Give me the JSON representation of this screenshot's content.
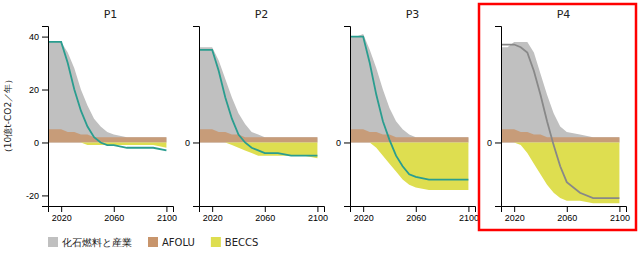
{
  "chart_data": [
    {
      "type": "area",
      "title": "P1",
      "ylabel": "（10億t-CO2／年）",
      "legend": "bottom",
      "x": [
        2010,
        2015,
        2020,
        2025,
        2030,
        2035,
        2040,
        2045,
        2050,
        2055,
        2060,
        2070,
        2080,
        2090,
        2100
      ],
      "xlim": [
        2010,
        2105
      ],
      "xticks": [
        2020,
        2060,
        2100
      ],
      "ylim": [
        -24,
        44
      ],
      "yticks": [
        -20,
        0,
        20,
        40
      ],
      "series": [
        {
          "name": "化石燃料と産業",
          "type": "area",
          "color": "#c0c0c0",
          "values": [
            38,
            38,
            38,
            34,
            28,
            20,
            14,
            9,
            6,
            4,
            3,
            2,
            2,
            2,
            2
          ],
          "lower": [
            0,
            0,
            0,
            0,
            0,
            0,
            0,
            0,
            0,
            0,
            0,
            0,
            0,
            0,
            0
          ]
        },
        {
          "name": "AFOLU",
          "type": "area",
          "color": "#c8956c",
          "values": [
            5,
            5,
            5,
            4,
            4,
            3,
            3,
            2,
            2,
            2,
            2,
            2,
            2,
            2,
            2
          ],
          "lower": [
            0,
            0,
            0,
            0,
            0,
            0,
            0,
            0,
            0,
            0,
            0,
            0,
            0,
            0,
            0
          ]
        },
        {
          "name": "BECCS",
          "type": "area",
          "color": "#dede50",
          "values": [
            0,
            0,
            0,
            0,
            0,
            0,
            0,
            0,
            0,
            0,
            0,
            0,
            0,
            0,
            0
          ],
          "lower": [
            0,
            0,
            0,
            0,
            0,
            0,
            -1,
            -1,
            -1,
            -1,
            -1,
            -1,
            -1,
            -1,
            -2
          ]
        },
        {
          "type": "line",
          "color": "#2a9d8f",
          "values": [
            38,
            38,
            38,
            30,
            20,
            12,
            6,
            2,
            0,
            -1,
            -1,
            -2,
            -2,
            -2,
            -3
          ]
        }
      ]
    },
    {
      "type": "area",
      "title": "P2",
      "x": [
        2010,
        2015,
        2020,
        2025,
        2030,
        2035,
        2040,
        2045,
        2050,
        2055,
        2060,
        2070,
        2080,
        2090,
        2100
      ],
      "xlim": [
        2010,
        2105
      ],
      "xticks": [
        2020,
        2060,
        2100
      ],
      "ylim": [
        -24,
        44
      ],
      "yticks": [
        0
      ],
      "series": [
        {
          "type": "area",
          "color": "#c0c0c0",
          "values": [
            36,
            36,
            36,
            31,
            24,
            17,
            11,
            7,
            4,
            3,
            2,
            2,
            2,
            2,
            2
          ],
          "lower": [
            0,
            0,
            0,
            0,
            0,
            0,
            0,
            0,
            0,
            0,
            0,
            0,
            0,
            0,
            0
          ]
        },
        {
          "type": "area",
          "color": "#c8956c",
          "values": [
            5,
            5,
            5,
            4,
            4,
            3,
            3,
            2,
            2,
            2,
            2,
            2,
            2,
            2,
            2
          ],
          "lower": [
            0,
            0,
            0,
            0,
            0,
            0,
            0,
            0,
            0,
            0,
            0,
            0,
            0,
            0,
            0
          ]
        },
        {
          "type": "area",
          "color": "#dede50",
          "values": [
            0,
            0,
            0,
            0,
            0,
            0,
            0,
            0,
            0,
            0,
            0,
            0,
            0,
            0,
            0
          ],
          "lower": [
            0,
            0,
            0,
            0,
            0,
            -1,
            -2,
            -3,
            -4,
            -5,
            -5,
            -5,
            -5,
            -5,
            -6
          ]
        },
        {
          "type": "line",
          "color": "#2a9d8f",
          "values": [
            35,
            35,
            35,
            27,
            17,
            9,
            3,
            0,
            -2,
            -3,
            -4,
            -4,
            -5,
            -5,
            -5
          ]
        }
      ]
    },
    {
      "type": "area",
      "title": "P3",
      "x": [
        2010,
        2015,
        2020,
        2025,
        2030,
        2035,
        2040,
        2045,
        2050,
        2055,
        2060,
        2070,
        2080,
        2090,
        2100
      ],
      "xlim": [
        2010,
        2105
      ],
      "xticks": [
        2020,
        2060,
        2100
      ],
      "ylim": [
        -24,
        44
      ],
      "yticks": [
        0
      ],
      "series": [
        {
          "type": "area",
          "color": "#c0c0c0",
          "values": [
            40,
            40,
            41,
            35,
            28,
            20,
            13,
            8,
            5,
            3,
            2,
            2,
            2,
            2,
            2
          ],
          "lower": [
            0,
            0,
            0,
            0,
            0,
            0,
            0,
            0,
            0,
            0,
            0,
            0,
            0,
            0,
            0
          ]
        },
        {
          "type": "area",
          "color": "#c8956c",
          "values": [
            5,
            5,
            5,
            4,
            4,
            3,
            3,
            2,
            2,
            2,
            2,
            2,
            2,
            2,
            2
          ],
          "lower": [
            0,
            0,
            0,
            0,
            0,
            0,
            0,
            0,
            0,
            0,
            0,
            0,
            0,
            0,
            0
          ]
        },
        {
          "type": "area",
          "color": "#dede50",
          "values": [
            0,
            0,
            0,
            0,
            0,
            0,
            0,
            0,
            0,
            0,
            0,
            0,
            0,
            0,
            0
          ],
          "lower": [
            0,
            0,
            0,
            0,
            -2,
            -5,
            -8,
            -11,
            -14,
            -16,
            -17,
            -18,
            -18,
            -18,
            -18
          ]
        },
        {
          "type": "line",
          "color": "#2a9d8f",
          "values": [
            40,
            40,
            40,
            30,
            18,
            8,
            1,
            -5,
            -9,
            -12,
            -13,
            -14,
            -14,
            -14,
            -14
          ]
        }
      ]
    },
    {
      "type": "area",
      "title": "P4",
      "color": "red",
      "x": [
        2010,
        2015,
        2020,
        2025,
        2030,
        2035,
        2040,
        2045,
        2050,
        2055,
        2060,
        2070,
        2080,
        2090,
        2100
      ],
      "xlim": [
        2010,
        2105
      ],
      "xticks": [
        2020,
        2060,
        2100
      ],
      "ylim": [
        -24,
        44
      ],
      "yticks": [
        0
      ],
      "series": [
        {
          "type": "area",
          "color": "#c0c0c0",
          "values": [
            36,
            36,
            38,
            38,
            38,
            34,
            26,
            18,
            11,
            6,
            4,
            3,
            2,
            2,
            2
          ],
          "lower": [
            0,
            0,
            0,
            0,
            0,
            0,
            0,
            0,
            0,
            0,
            0,
            0,
            0,
            0,
            0
          ]
        },
        {
          "type": "area",
          "color": "#c8956c",
          "values": [
            5,
            5,
            5,
            4,
            4,
            3,
            3,
            2,
            2,
            2,
            2,
            2,
            2,
            2,
            2
          ],
          "lower": [
            0,
            0,
            0,
            0,
            0,
            0,
            0,
            0,
            0,
            0,
            0,
            0,
            0,
            0,
            0
          ]
        },
        {
          "type": "area",
          "color": "#dede50",
          "values": [
            0,
            0,
            0,
            0,
            0,
            0,
            0,
            0,
            0,
            0,
            0,
            0,
            0,
            0,
            0
          ],
          "lower": [
            0,
            0,
            0,
            -1,
            -4,
            -8,
            -12,
            -16,
            -19,
            -21,
            -22,
            -22,
            -23,
            -23,
            -23
          ]
        },
        {
          "type": "line",
          "color": "#888888",
          "values": [
            37,
            37,
            37,
            36,
            34,
            27,
            18,
            8,
            -1,
            -9,
            -15,
            -19,
            -21,
            -21,
            -21
          ]
        }
      ]
    }
  ]
}
